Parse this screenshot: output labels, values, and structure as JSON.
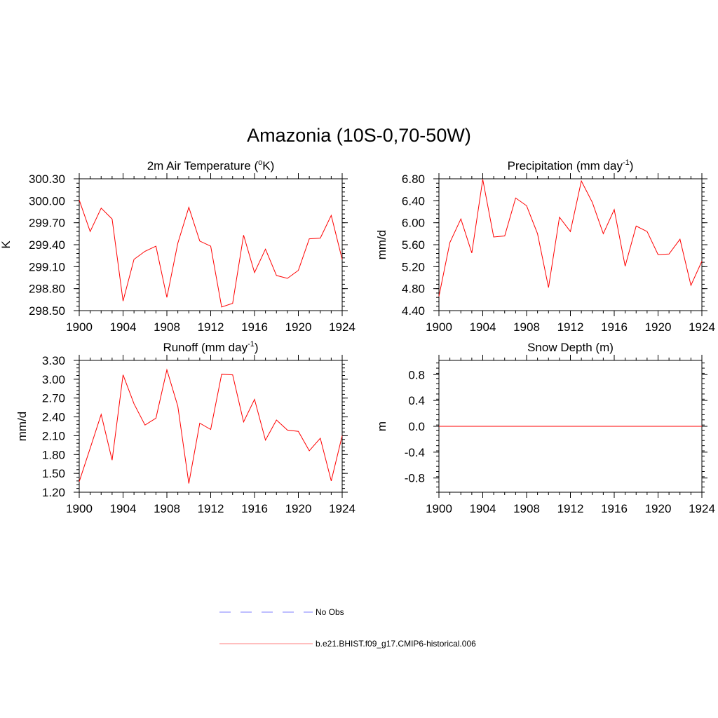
{
  "figure_title": "Amazonia (10S-0,70-50W)",
  "colors": {
    "series": "#ff0000",
    "obs": "#9999ff",
    "axis": "#000000"
  },
  "chart_data": [
    {
      "type": "line",
      "title_main": "2m Air Temperature (",
      "title_sup": "o",
      "title_end": "K)",
      "ylabel": "K",
      "xlabel": "",
      "x": [
        1900,
        1901,
        1902,
        1903,
        1904,
        1905,
        1906,
        1907,
        1908,
        1909,
        1910,
        1911,
        1912,
        1913,
        1914,
        1915,
        1916,
        1917,
        1918,
        1919,
        1920,
        1921,
        1922,
        1923,
        1924
      ],
      "values": [
        300.01,
        299.58,
        299.9,
        299.75,
        298.63,
        299.2,
        299.31,
        299.38,
        298.68,
        299.42,
        299.91,
        299.45,
        299.38,
        298.55,
        298.6,
        299.53,
        299.02,
        299.34,
        298.98,
        298.94,
        299.05,
        299.48,
        299.49,
        299.8,
        299.2
      ],
      "xlim": [
        1900,
        1924
      ],
      "ylim": [
        298.5,
        300.3
      ],
      "yticks": [
        "298.50",
        "298.80",
        "299.10",
        "299.40",
        "299.70",
        "300.00",
        "300.30"
      ],
      "xticks": [
        "1900",
        "1904",
        "1908",
        "1912",
        "1916",
        "1920",
        "1924"
      ],
      "grid": false
    },
    {
      "type": "line",
      "title_main": "Precipitation (mm day",
      "title_sup": "-1",
      "title_end": ")",
      "ylabel": "mm/d",
      "xlabel": "",
      "x": [
        1900,
        1901,
        1902,
        1903,
        1904,
        1905,
        1906,
        1907,
        1908,
        1909,
        1910,
        1911,
        1912,
        1913,
        1914,
        1915,
        1916,
        1917,
        1918,
        1919,
        1920,
        1921,
        1922,
        1923,
        1924
      ],
      "values": [
        4.66,
        5.64,
        6.07,
        5.45,
        6.79,
        5.74,
        5.76,
        6.45,
        6.31,
        5.8,
        4.82,
        6.1,
        5.84,
        6.76,
        6.37,
        5.8,
        6.24,
        5.21,
        5.94,
        5.84,
        5.42,
        5.43,
        5.7,
        4.86,
        5.3
      ],
      "xlim": [
        1900,
        1924
      ],
      "ylim": [
        4.4,
        6.8
      ],
      "yticks": [
        "4.40",
        "4.80",
        "5.20",
        "5.60",
        "6.00",
        "6.40",
        "6.80"
      ],
      "xticks": [
        "1900",
        "1904",
        "1908",
        "1912",
        "1916",
        "1920",
        "1924"
      ],
      "grid": false
    },
    {
      "type": "line",
      "title_main": "Runoff (mm day",
      "title_sup": "-1",
      "title_end": ")",
      "ylabel": "mm/d",
      "xlabel": "",
      "x": [
        1900,
        1901,
        1902,
        1903,
        1904,
        1905,
        1906,
        1907,
        1908,
        1909,
        1910,
        1911,
        1912,
        1913,
        1914,
        1915,
        1916,
        1917,
        1918,
        1919,
        1920,
        1921,
        1922,
        1923,
        1924
      ],
      "values": [
        1.37,
        1.9,
        2.44,
        1.71,
        3.07,
        2.61,
        2.27,
        2.38,
        3.15,
        2.57,
        1.34,
        2.3,
        2.2,
        3.08,
        3.07,
        2.32,
        2.68,
        2.03,
        2.35,
        2.19,
        2.17,
        1.86,
        2.06,
        1.38,
        2.1
      ],
      "xlim": [
        1900,
        1924
      ],
      "ylim": [
        1.2,
        3.3
      ],
      "yticks": [
        "1.20",
        "1.50",
        "1.80",
        "2.10",
        "2.40",
        "2.70",
        "3.00",
        "3.30"
      ],
      "xticks": [
        "1900",
        "1904",
        "1908",
        "1912",
        "1916",
        "1920",
        "1924"
      ],
      "grid": false
    },
    {
      "type": "line",
      "title_main": "Snow Depth (m)",
      "title_sup": "",
      "title_end": "",
      "ylabel": "m",
      "xlabel": "",
      "x": [
        1900,
        1901,
        1902,
        1903,
        1904,
        1905,
        1906,
        1907,
        1908,
        1909,
        1910,
        1911,
        1912,
        1913,
        1914,
        1915,
        1916,
        1917,
        1918,
        1919,
        1920,
        1921,
        1922,
        1923,
        1924
      ],
      "values": [
        0,
        0,
        0,
        0,
        0,
        0,
        0,
        0,
        0,
        0,
        0,
        0,
        0,
        0,
        0,
        0,
        0,
        0,
        0,
        0,
        0,
        0,
        0,
        0,
        0
      ],
      "xlim": [
        1900,
        1924
      ],
      "ylim": [
        -1.02,
        1.02
      ],
      "yticks": [
        "-0.8",
        "-0.4",
        "0.0",
        "0.4",
        "0.8"
      ],
      "xticks": [
        "1900",
        "1904",
        "1908",
        "1912",
        "1916",
        "1920",
        "1924"
      ],
      "grid": false
    }
  ],
  "legend": [
    {
      "label": "No Obs",
      "style": "dashed",
      "color": "#9999ff"
    },
    {
      "label": "b.e21.BHIST.f09_g17.CMIP6-historical.006",
      "style": "solid",
      "color": "#ff9999"
    }
  ]
}
